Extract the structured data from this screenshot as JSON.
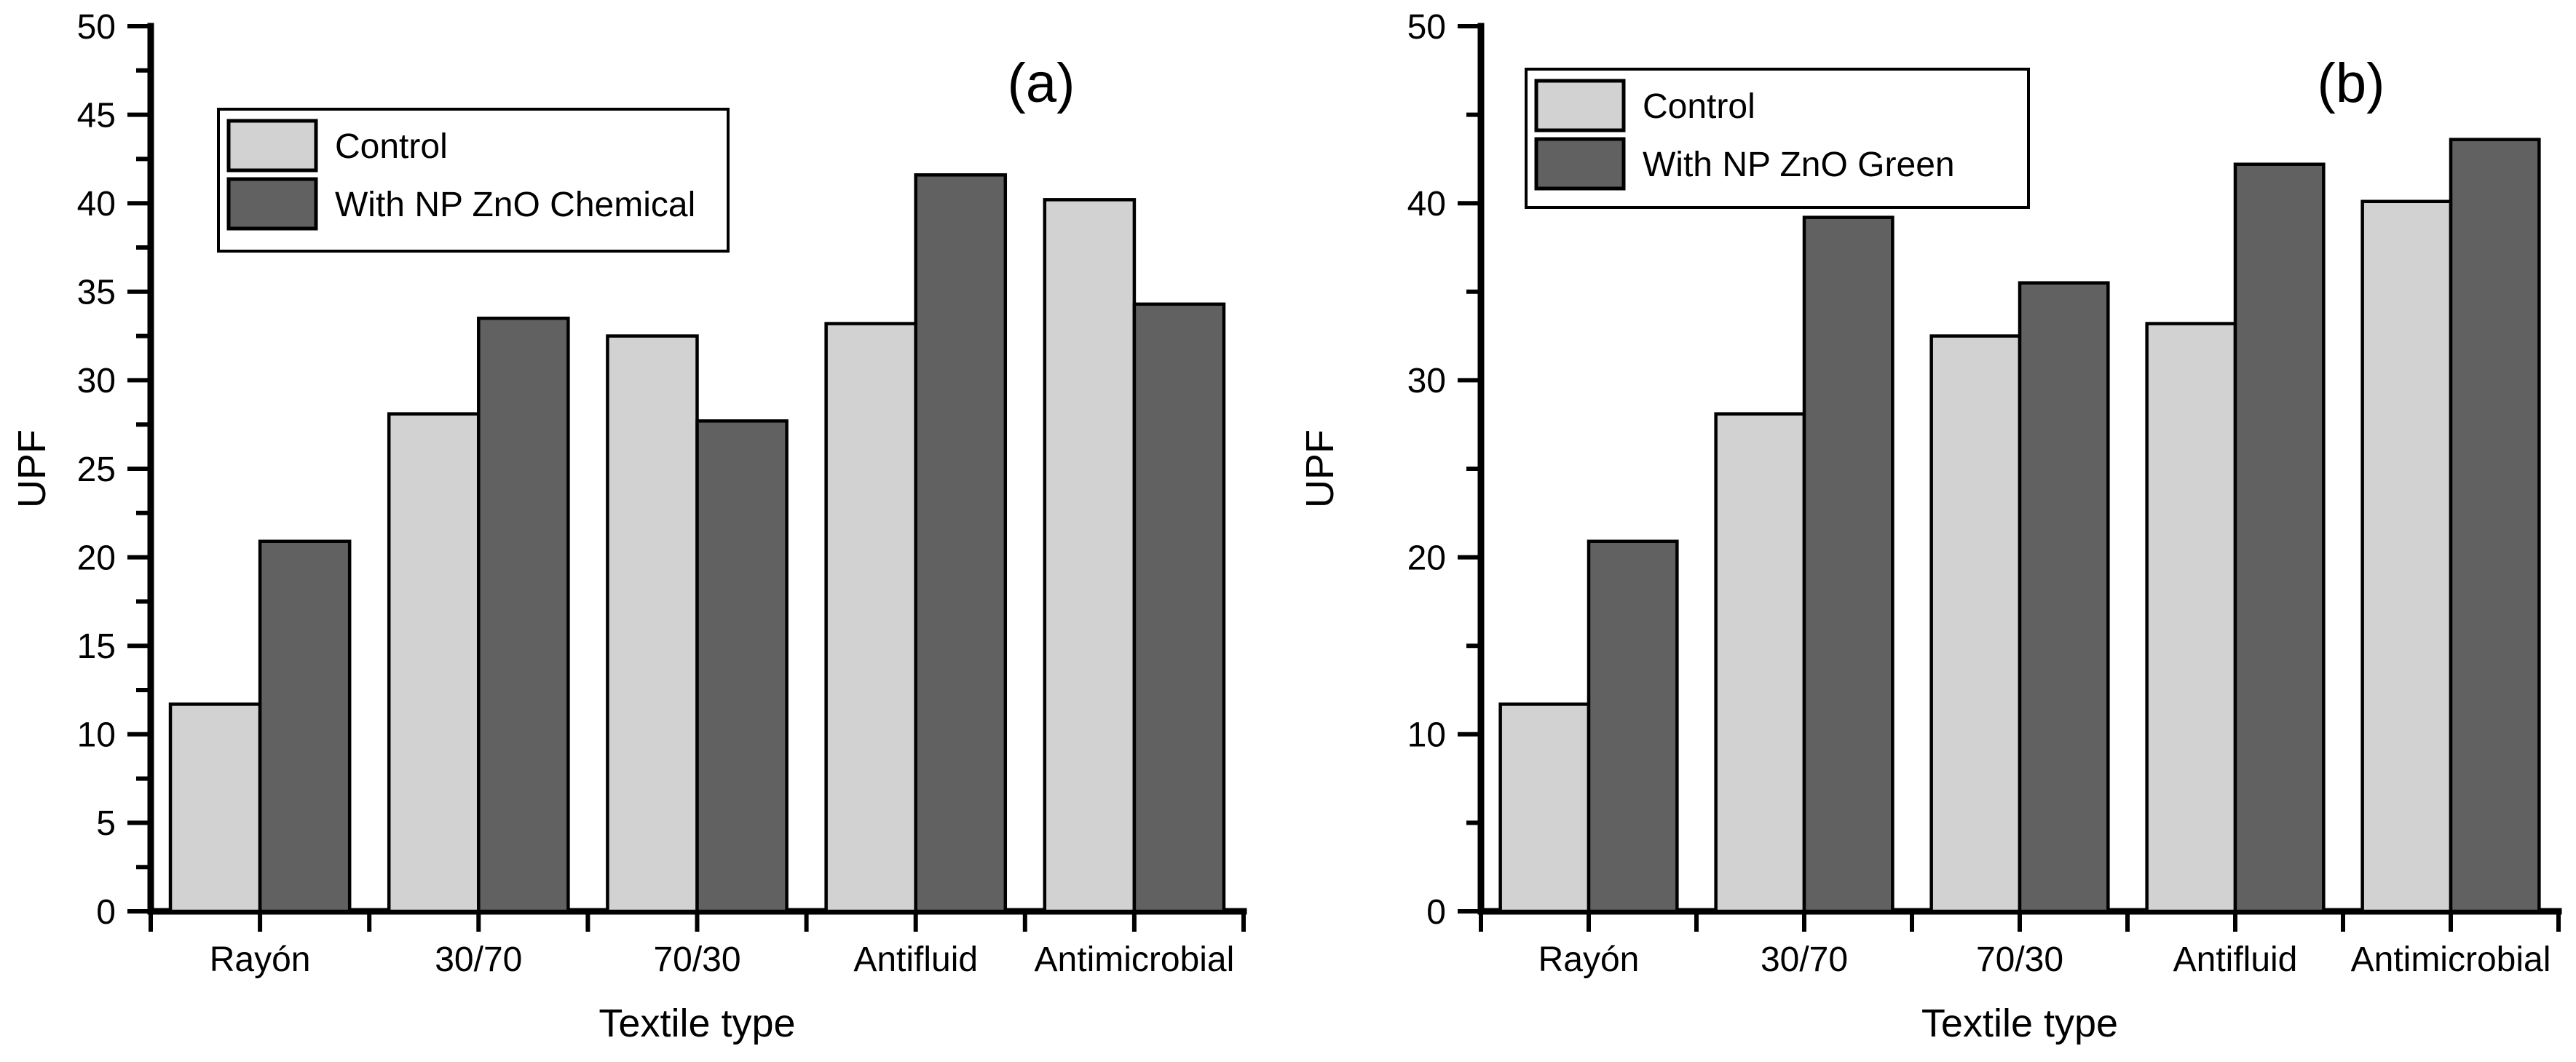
{
  "figure": {
    "background": "#ffffff",
    "axis_color": "#000000",
    "bar_outline_color": "#000000",
    "control_fill": "#d2d2d2",
    "treated_fill": "#616161"
  },
  "chart_data": [
    {
      "type": "bar",
      "panel_label": "(a)",
      "title": "",
      "xlabel": "Textile type",
      "ylabel": "UPF",
      "ylim": [
        0,
        50
      ],
      "y_major_step": 5,
      "y_minor_step": 2.5,
      "grid": false,
      "legend_position": "top-left-inside",
      "categories": [
        "Rayón",
        "30/70",
        "70/30",
        "Antifluid",
        "Antimicrobial"
      ],
      "series": [
        {
          "name": "Control",
          "fill": "#d2d2d2",
          "values": [
            11.7,
            28.1,
            32.5,
            33.2,
            40.2
          ]
        },
        {
          "name": "With NP ZnO Chemical",
          "fill": "#616161",
          "values": [
            20.9,
            33.5,
            27.7,
            41.6,
            34.3
          ]
        }
      ]
    },
    {
      "type": "bar",
      "panel_label": "(b)",
      "title": "",
      "xlabel": "Textile type",
      "ylabel": "UPF",
      "ylim": [
        0,
        50
      ],
      "y_major_step": 10,
      "y_minor_step": 5,
      "grid": false,
      "legend_position": "top-left-inside",
      "categories": [
        "Rayón",
        "30/70",
        "70/30",
        "Antifluid",
        "Antimicrobial"
      ],
      "series": [
        {
          "name": "Control",
          "fill": "#d2d2d2",
          "values": [
            11.7,
            28.1,
            32.5,
            33.2,
            40.1
          ]
        },
        {
          "name": "With NP ZnO Green",
          "fill": "#616161",
          "values": [
            20.9,
            39.2,
            35.5,
            42.2,
            43.6
          ]
        }
      ]
    }
  ]
}
